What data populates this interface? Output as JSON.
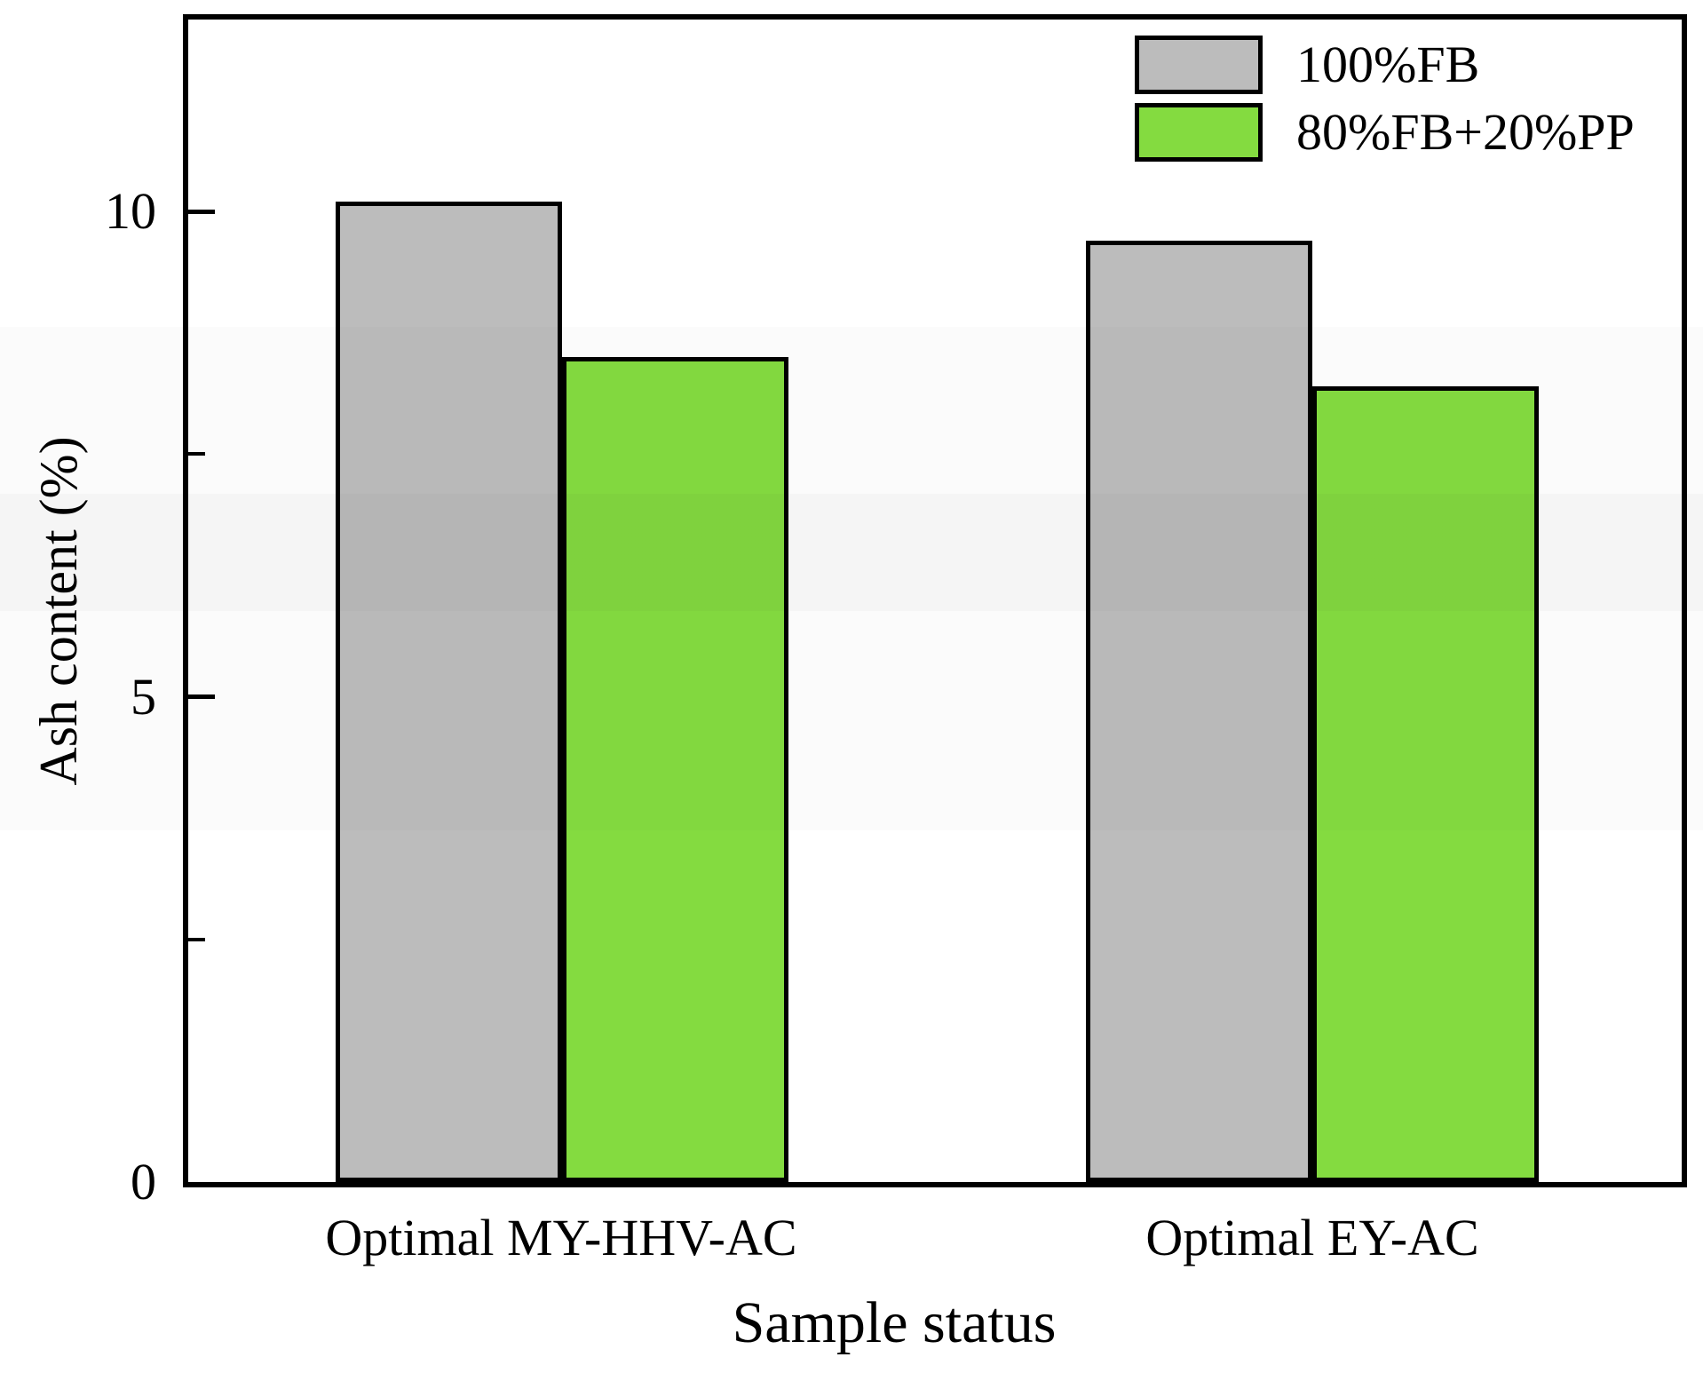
{
  "chart_data": {
    "type": "bar",
    "title": "",
    "xlabel": "Sample status",
    "ylabel": "Ash content (%)",
    "categories": [
      "Optimal MY-HHV-AC",
      "Optimal EY-AC"
    ],
    "series": [
      {
        "name": "100%FB",
        "color": "#bcbcbc",
        "values": [
          10.1,
          9.7
        ]
      },
      {
        "name": "80%FB+20%PP",
        "color": "#84db40",
        "values": [
          8.5,
          8.2
        ]
      }
    ],
    "ylim": [
      0,
      12
    ],
    "yticks_major": [
      0,
      5,
      10
    ],
    "yticks_minor": [
      2.5,
      7.5
    ],
    "ytick_labels": [
      "0",
      "5",
      "10"
    ],
    "grid": false,
    "legend_position": "upper right",
    "bar_edge_color": "#000000",
    "axis_color": "#000000"
  }
}
